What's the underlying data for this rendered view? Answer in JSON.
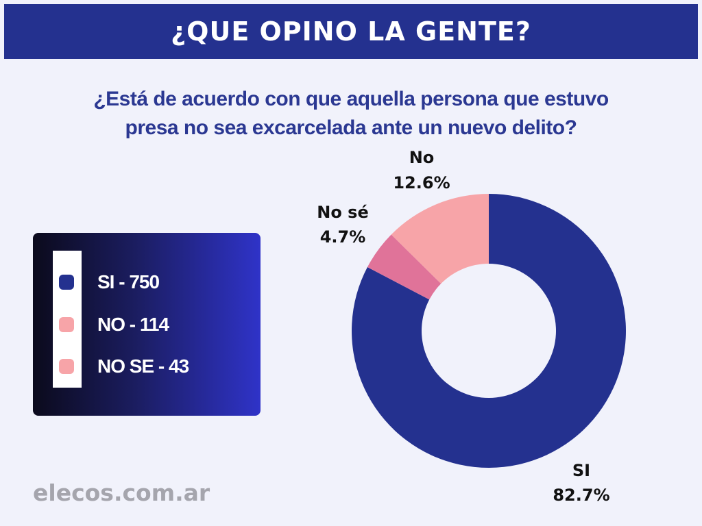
{
  "header": {
    "title": "¿QUE OPINO LA GENTE?"
  },
  "question": {
    "line1": "¿Está de acuerdo con que aquella persona que estuvo",
    "line2": "presa no sea excarcelada ante un nuevo delito?"
  },
  "legend": {
    "items": [
      {
        "label": "SI - 750",
        "color": "#24318f"
      },
      {
        "label": "NO - 114",
        "color": "#f7a4a8"
      },
      {
        "label": "NO SE - 43",
        "color": "#f7a4a8"
      }
    ]
  },
  "chart_data": {
    "type": "pie",
    "donut": true,
    "categories": [
      "SI",
      "No sé",
      "No"
    ],
    "values": [
      82.7,
      4.7,
      12.6
    ],
    "value_labels": [
      "82.7%",
      "4.7%",
      "12.6%"
    ],
    "colors": [
      "#24318f",
      "#e07399",
      "#f7a4a8"
    ],
    "title": "",
    "legend_placement": "left"
  },
  "footer": {
    "text": "elecos.com.ar"
  }
}
